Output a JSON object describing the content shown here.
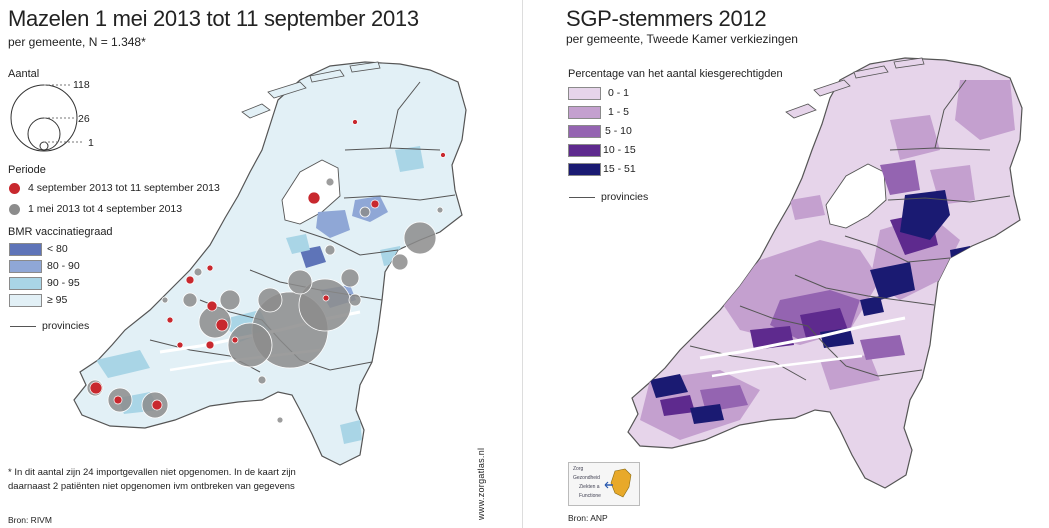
{
  "left": {
    "title": "Mazelen 1 mei 2013 tot 11 september 2013",
    "subtitle": "per gemeente, N = 1.348*",
    "legend": {
      "size_heading": "Aantal",
      "size_values": [
        "118",
        "26",
        "1"
      ],
      "period_heading": "Periode",
      "periods": [
        {
          "label": "4 september 2013 tot 11 september 2013",
          "color": "#c8282e"
        },
        {
          "label": "1 mei 2013 tot 4 september 2013",
          "color": "#8c8c8c"
        }
      ],
      "bmr_heading": "BMR vaccinatiegraad",
      "bmr_classes": [
        {
          "label": "< 80",
          "color": "#5e74b8"
        },
        {
          "label": "80 - 90",
          "color": "#8fa7d6"
        },
        {
          "label": "90 - 95",
          "color": "#a9d5e6"
        },
        {
          "label": "≥ 95",
          "color": "#e2f0f6"
        }
      ],
      "province_label": "provincies"
    },
    "footnote_line1": "* In dit aantal zijn 24 importgevallen niet opgenomen. In de kaart zijn",
    "footnote_line2": "daarnaast 2 patiënten niet opgenomen ivm ontbreken van gegevens",
    "source": "Bron: RIVM",
    "watermark": "www.zorgatlas.nl"
  },
  "right": {
    "title": "SGP-stemmers 2012",
    "subtitle": "per gemeente, Tweede Kamer verkiezingen",
    "legend": {
      "heading": "Percentage van het aantal kiesgerechtigden",
      "classes": [
        {
          "label": "0 -  1",
          "color": "#e6d4ea"
        },
        {
          "label": "1 -  5",
          "color": "#c4a0cf"
        },
        {
          "label": "5 - 10",
          "color": "#9464b1"
        },
        {
          "label": "10 - 15",
          "color": "#5e2a8e"
        },
        {
          "label": "15 - 51",
          "color": "#1a1a72"
        }
      ],
      "province_label": "provincies"
    },
    "logo_items": [
      "Zorg",
      "Gezondheid",
      "Ziekten a",
      "Functione"
    ],
    "source": "Bron: ANP"
  }
}
